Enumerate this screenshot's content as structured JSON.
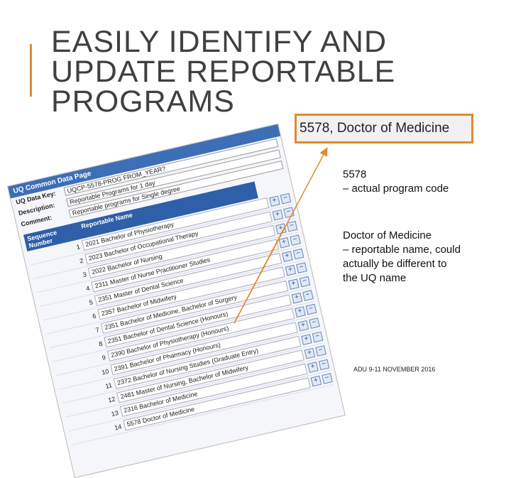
{
  "slide": {
    "title_lines": [
      "EASILY IDENTIFY AND",
      "UPDATE REPORTABLE",
      "PROGRAMS"
    ],
    "zoom_label": "5578, Doctor of Medicine",
    "notes": [
      {
        "heading": "5578",
        "text": "– actual program code"
      },
      {
        "heading": "Doctor of Medicine",
        "text": "– reportable name, could actually be different to the UQ name"
      }
    ],
    "footer": "ADU 9-11 NOVEMBER 2016"
  },
  "screenshot": {
    "page_title": "UQ Common Data Page",
    "fields": [
      {
        "label": "UQ Data Key:",
        "value": "UQCP-5578-PROG FROM_YEAR?"
      },
      {
        "label": "Description:",
        "value": "Reportable Programs for 1 day"
      },
      {
        "label": "Comment:",
        "value": "Reportable programs for Single degree"
      }
    ],
    "columns": [
      "Sequence Number",
      "Reportable Name"
    ],
    "rows": [
      [
        "1",
        "2021 Bachelor of Physiotherapy"
      ],
      [
        "2",
        "2023 Bachelor of Occupational Therapy"
      ],
      [
        "3",
        "2022 Bachelor of Nursing"
      ],
      [
        "4",
        "2311 Master of Nurse Practitioner Studies"
      ],
      [
        "5",
        "2351 Master of Dental Science"
      ],
      [
        "6",
        "2357 Bachelor of Midwifery"
      ],
      [
        "7",
        "2351 Bachelor of Medicine, Bachelor of Surgery"
      ],
      [
        "8",
        "2351 Bachelor of Dental Science (Honours)"
      ],
      [
        "9",
        "2390 Bachelor of Physiotherapy (Honours)"
      ],
      [
        "10",
        "2391 Bachelor of Pharmacy (Honours)"
      ],
      [
        "11",
        "2372 Bachelor of Nursing Studies (Graduate Entry)"
      ],
      [
        "12",
        "2481 Master of Nursing, Bachelor of Midwifery"
      ],
      [
        "13",
        "2316 Bachelor of Medicine"
      ],
      [
        "14",
        "5578 Doctor of Medicine"
      ]
    ]
  }
}
